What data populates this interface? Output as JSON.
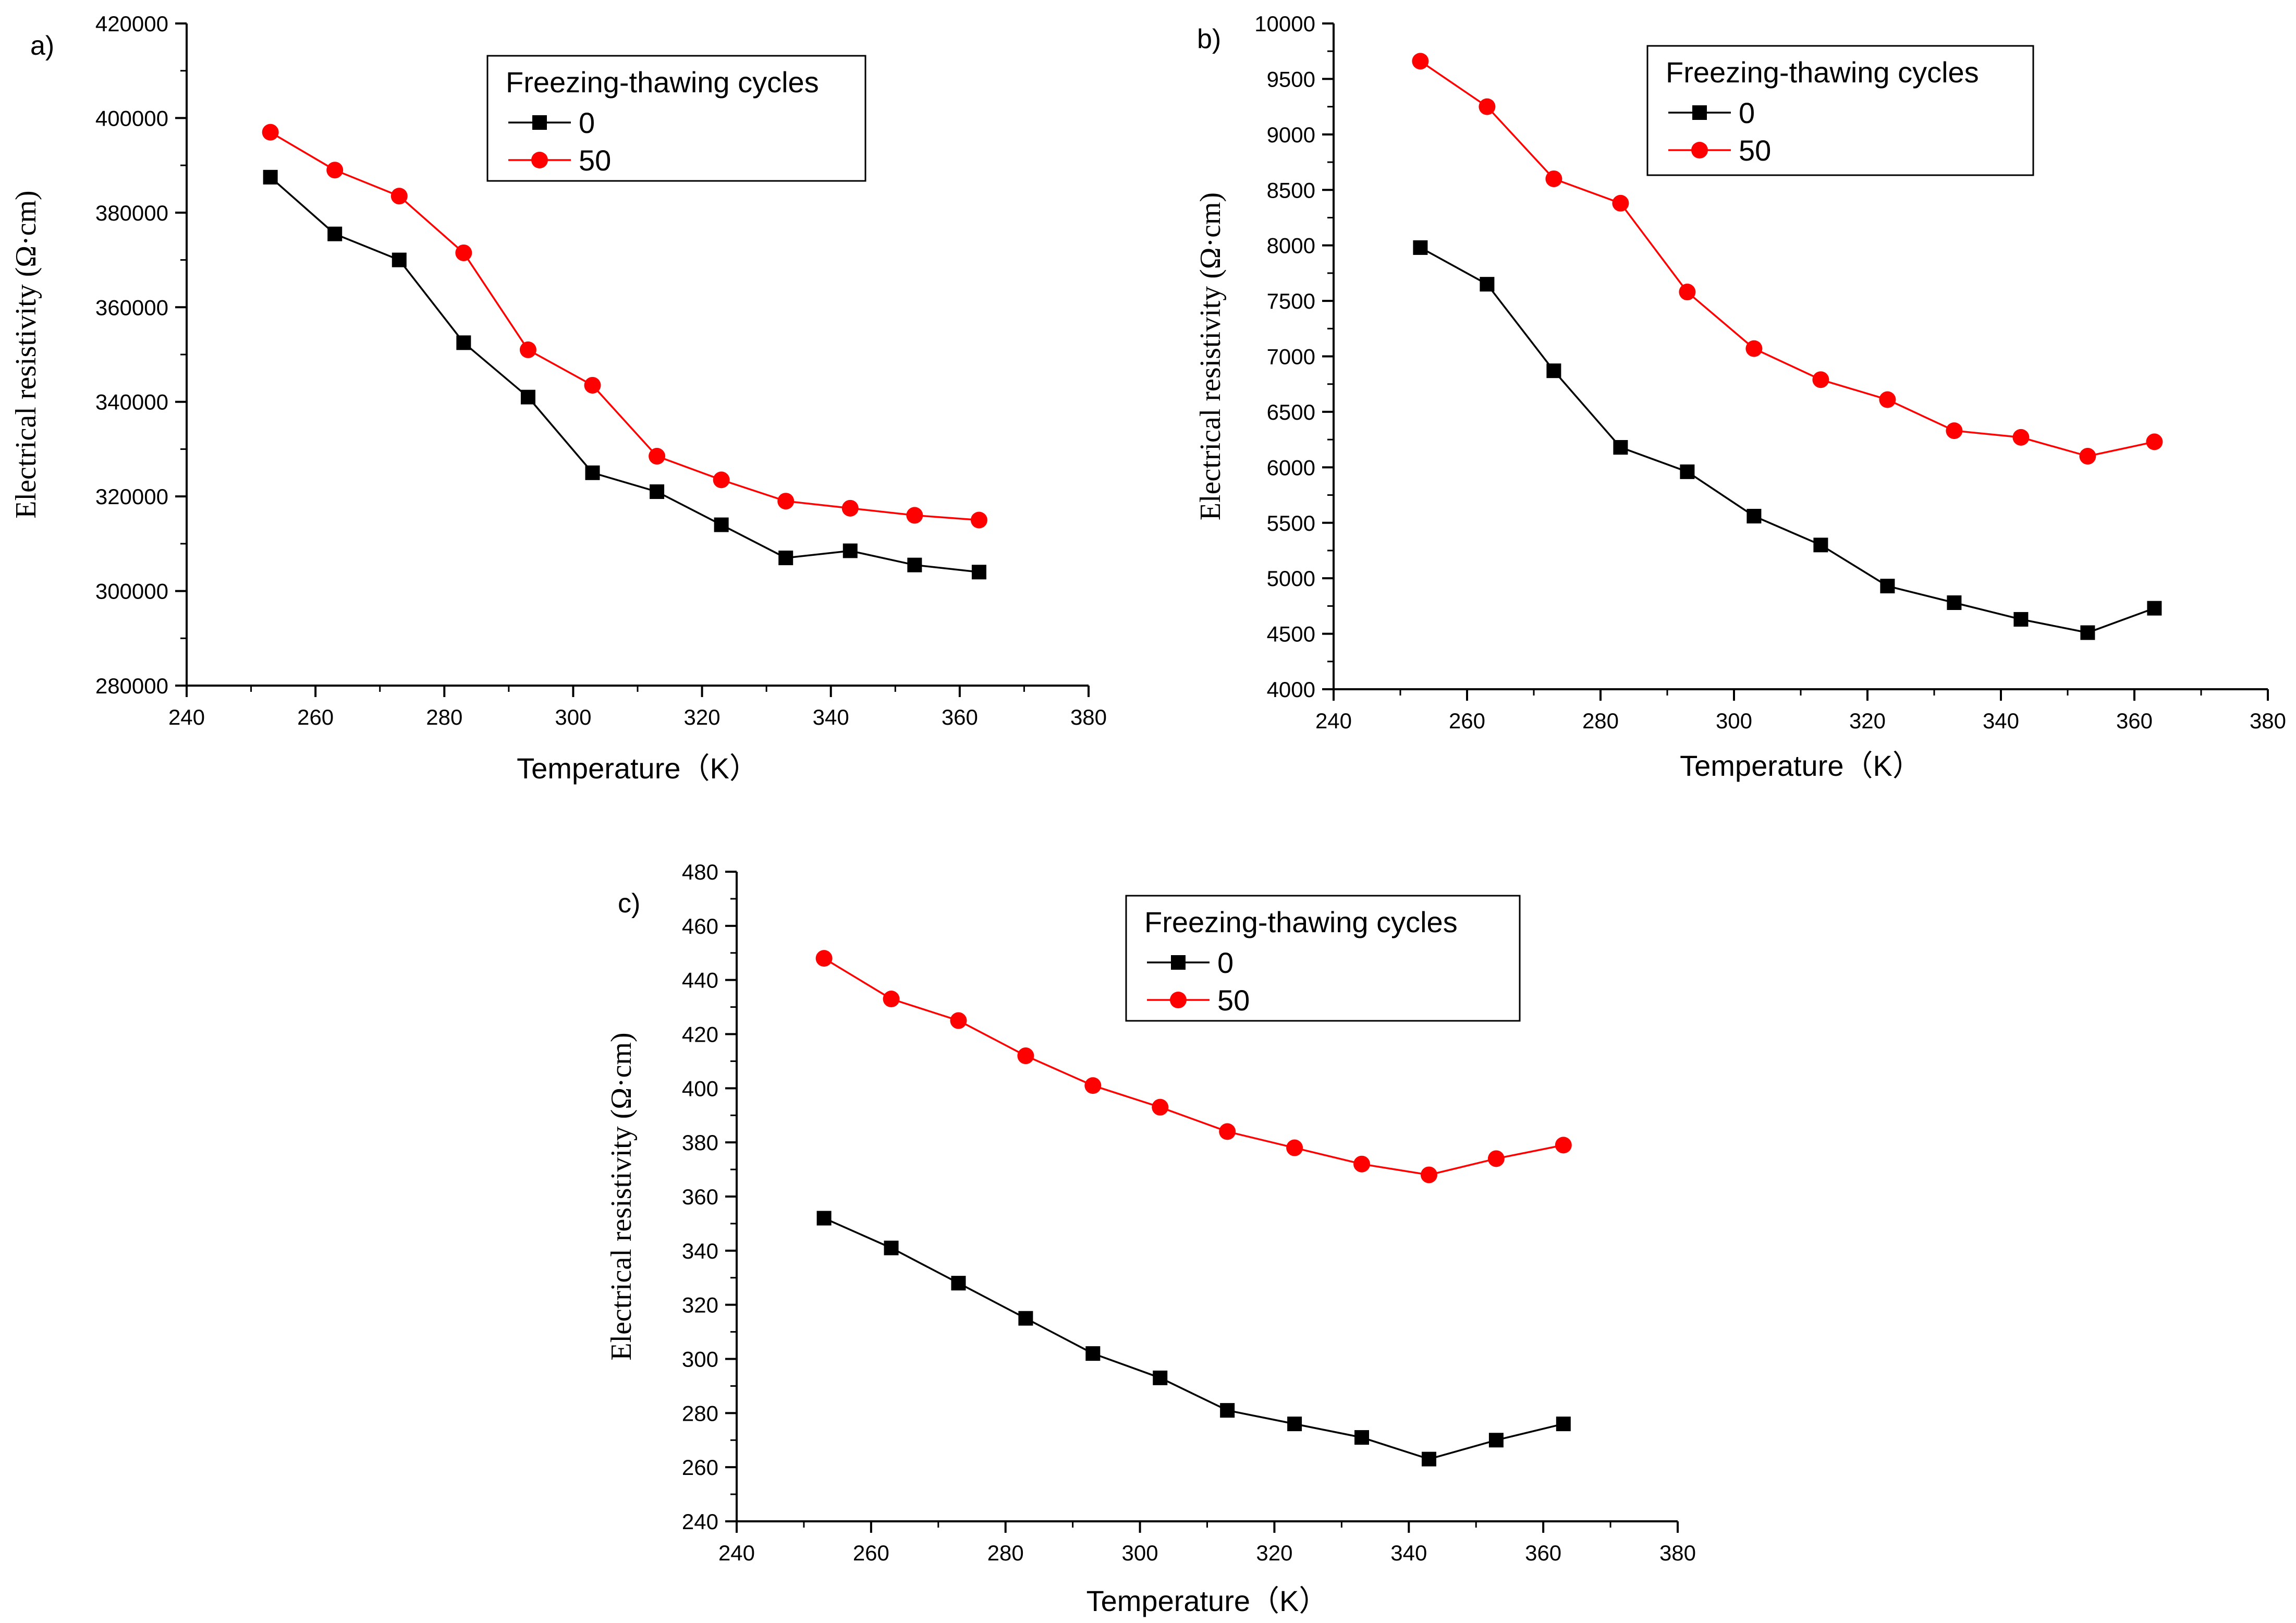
{
  "colors": {
    "series_0": "#000000",
    "series_50": "#ff0000"
  },
  "chart_data": [
    {
      "type": "line",
      "panel_label": "a)",
      "xlabel": "Temperature（K）",
      "ylabel": "Electrical resistivity (Ω·cm)",
      "xlim": [
        240,
        380
      ],
      "ylim": [
        280000,
        420000
      ],
      "xticks": [
        240,
        260,
        280,
        300,
        320,
        340,
        360,
        380
      ],
      "yticks": [
        280000,
        300000,
        320000,
        340000,
        360000,
        380000,
        400000,
        420000
      ],
      "xtick_labels": [
        "240",
        "260",
        "280",
        "300",
        "320",
        "340",
        "360",
        "380"
      ],
      "ytick_labels": [
        "280000",
        "300000",
        "320000",
        "340000",
        "360000",
        "380000",
        "400000",
        "420000"
      ],
      "legend_title": "Freezing-thawing cycles",
      "legend_position": "top-right",
      "x": [
        253,
        263,
        273,
        283,
        293,
        303,
        313,
        323,
        333,
        343,
        353,
        363
      ],
      "series": [
        {
          "name": "0",
          "marker": "square",
          "color": "#000000",
          "values": [
            387500,
            375500,
            370000,
            352500,
            341000,
            325000,
            321000,
            314000,
            307000,
            308500,
            305500,
            304000
          ]
        },
        {
          "name": "50",
          "marker": "circle",
          "color": "#ff0000",
          "values": [
            397000,
            389000,
            383500,
            371500,
            351000,
            343500,
            328500,
            323500,
            319000,
            317500,
            316000,
            315000
          ]
        }
      ]
    },
    {
      "type": "line",
      "panel_label": "b)",
      "xlabel": "Temperature（K）",
      "ylabel": "Electrical resistivity (Ω·cm)",
      "xlim": [
        240,
        380
      ],
      "ylim": [
        4000,
        10000
      ],
      "xticks": [
        240,
        260,
        280,
        300,
        320,
        340,
        360,
        380
      ],
      "yticks": [
        4000,
        4500,
        5000,
        5500,
        6000,
        6500,
        7000,
        7500,
        8000,
        8500,
        9000,
        9500,
        10000
      ],
      "xtick_labels": [
        "240",
        "260",
        "280",
        "300",
        "320",
        "340",
        "360",
        "380"
      ],
      "ytick_labels": [
        "4000",
        "4500",
        "5000",
        "5500",
        "6000",
        "6500",
        "7000",
        "7500",
        "8000",
        "8500",
        "9000",
        "9500",
        "10000"
      ],
      "legend_title": "Freezing-thawing cycles",
      "legend_position": "top-right",
      "x": [
        253,
        263,
        273,
        283,
        293,
        303,
        313,
        323,
        333,
        343,
        353,
        363
      ],
      "series": [
        {
          "name": "0",
          "marker": "square",
          "color": "#000000",
          "values": [
            7980,
            7650,
            6870,
            6180,
            5960,
            5560,
            5300,
            4930,
            4780,
            4630,
            4510,
            4730
          ]
        },
        {
          "name": "50",
          "marker": "circle",
          "color": "#ff0000",
          "values": [
            9660,
            9250,
            8600,
            8380,
            7580,
            7070,
            6790,
            6610,
            6330,
            6270,
            6100,
            6230
          ]
        }
      ]
    },
    {
      "type": "line",
      "panel_label": "c)",
      "xlabel": "Temperature（K）",
      "ylabel": "Electrical resistivity (Ω·cm)",
      "xlim": [
        240,
        380
      ],
      "ylim": [
        240,
        480
      ],
      "xticks": [
        240,
        260,
        280,
        300,
        320,
        340,
        360,
        380
      ],
      "yticks": [
        240,
        260,
        280,
        300,
        320,
        340,
        360,
        380,
        400,
        420,
        440,
        460,
        480
      ],
      "xtick_labels": [
        "240",
        "260",
        "280",
        "300",
        "320",
        "340",
        "360",
        "380"
      ],
      "ytick_labels": [
        "240",
        "260",
        "280",
        "300",
        "320",
        "340",
        "360",
        "380",
        "400",
        "420",
        "440",
        "460",
        "480"
      ],
      "legend_title": "Freezing-thawing cycles",
      "legend_position": "top-right",
      "x": [
        253,
        263,
        273,
        283,
        293,
        303,
        313,
        323,
        333,
        343,
        353,
        363
      ],
      "series": [
        {
          "name": "0",
          "marker": "square",
          "color": "#000000",
          "values": [
            352,
            341,
            328,
            315,
            302,
            293,
            281,
            276,
            271,
            263,
            270,
            276
          ]
        },
        {
          "name": "50",
          "marker": "circle",
          "color": "#ff0000",
          "values": [
            448,
            433,
            425,
            412,
            401,
            393,
            384,
            378,
            372,
            368,
            374,
            379
          ]
        }
      ]
    }
  ]
}
